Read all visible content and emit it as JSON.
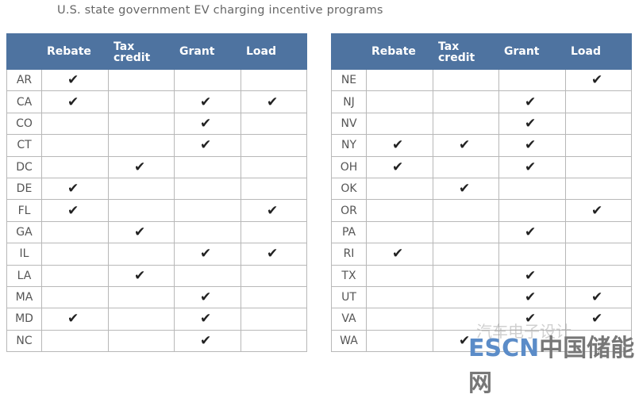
{
  "title": "U.S. state government EV charging incentive programs",
  "watermark": {
    "line1": "汽车电子设计",
    "brand": "ESCN",
    "brand_cn": "中国储能网"
  },
  "chart_data": {
    "type": "table",
    "title": "U.S. state government EV charging incentive programs",
    "columns": [
      "",
      "Rebate",
      "Tax credit",
      "Grant",
      "Load"
    ],
    "header_color": "#4e73a0",
    "tables": [
      {
        "rows": [
          {
            "state": "AR",
            "v": [
              1,
              0,
              0,
              0
            ]
          },
          {
            "state": "CA",
            "v": [
              1,
              0,
              1,
              1
            ]
          },
          {
            "state": "CO",
            "v": [
              0,
              0,
              1,
              0
            ]
          },
          {
            "state": "CT",
            "v": [
              0,
              0,
              1,
              0
            ]
          },
          {
            "state": "DC",
            "v": [
              0,
              1,
              0,
              0
            ]
          },
          {
            "state": "DE",
            "v": [
              1,
              0,
              0,
              0
            ]
          },
          {
            "state": "FL",
            "v": [
              1,
              0,
              0,
              1
            ]
          },
          {
            "state": "GA",
            "v": [
              0,
              1,
              0,
              0
            ]
          },
          {
            "state": "IL",
            "v": [
              0,
              0,
              1,
              1
            ]
          },
          {
            "state": "LA",
            "v": [
              0,
              1,
              0,
              0
            ]
          },
          {
            "state": "MA",
            "v": [
              0,
              0,
              1,
              0
            ]
          },
          {
            "state": "MD",
            "v": [
              1,
              0,
              1,
              0
            ]
          },
          {
            "state": "NC",
            "v": [
              0,
              0,
              1,
              0
            ]
          }
        ]
      },
      {
        "rows": [
          {
            "state": "NE",
            "v": [
              0,
              0,
              0,
              1
            ]
          },
          {
            "state": "NJ",
            "v": [
              0,
              0,
              1,
              0
            ]
          },
          {
            "state": "NV",
            "v": [
              0,
              0,
              1,
              0
            ]
          },
          {
            "state": "NY",
            "v": [
              1,
              1,
              1,
              0
            ]
          },
          {
            "state": "OH",
            "v": [
              1,
              0,
              1,
              0
            ]
          },
          {
            "state": "OK",
            "v": [
              0,
              1,
              0,
              0
            ]
          },
          {
            "state": "OR",
            "v": [
              0,
              0,
              0,
              1
            ]
          },
          {
            "state": "PA",
            "v": [
              0,
              0,
              1,
              0
            ]
          },
          {
            "state": "RI",
            "v": [
              1,
              0,
              0,
              0
            ]
          },
          {
            "state": "TX",
            "v": [
              0,
              0,
              1,
              0
            ]
          },
          {
            "state": "UT",
            "v": [
              0,
              0,
              1,
              1
            ]
          },
          {
            "state": "VA",
            "v": [
              0,
              0,
              1,
              1
            ]
          },
          {
            "state": "WA",
            "v": [
              0,
              1,
              0,
              0
            ]
          }
        ]
      }
    ]
  }
}
